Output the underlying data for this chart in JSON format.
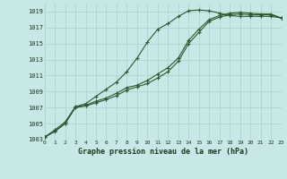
{
  "title": "Graphe pression niveau de la mer (hPa)",
  "bg_color": "#c8e8e8",
  "grid_color": "#b0d8d0",
  "line_color": "#2d5a2d",
  "xlim": [
    0,
    23
  ],
  "ylim": [
    1003,
    1020
  ],
  "yticks": [
    1003,
    1005,
    1007,
    1009,
    1011,
    1013,
    1015,
    1017,
    1019
  ],
  "xticks": [
    0,
    1,
    2,
    3,
    4,
    5,
    6,
    7,
    8,
    9,
    10,
    11,
    12,
    13,
    14,
    15,
    16,
    17,
    18,
    19,
    20,
    21,
    22,
    23
  ],
  "series": [
    [
      1003.3,
      1004.2,
      1005.2,
      1007.1,
      1007.5,
      1008.4,
      1009.3,
      1010.2,
      1011.5,
      1013.2,
      1015.2,
      1016.8,
      1017.5,
      1018.4,
      1019.1,
      1019.2,
      1019.1,
      1018.8,
      1018.5,
      1018.4,
      1018.4,
      1018.4,
      1018.4,
      1018.2
    ],
    [
      1003.3,
      1004.1,
      1005.0,
      1007.1,
      1007.3,
      1007.8,
      1008.2,
      1008.8,
      1009.5,
      1009.8,
      1010.4,
      1011.2,
      1012.0,
      1013.2,
      1015.4,
      1016.8,
      1018.0,
      1018.5,
      1018.8,
      1018.9,
      1018.8,
      1018.7,
      1018.7,
      1018.2
    ],
    [
      1003.3,
      1004.0,
      1005.0,
      1007.0,
      1007.2,
      1007.6,
      1008.0,
      1008.5,
      1009.2,
      1009.6,
      1010.0,
      1010.7,
      1011.5,
      1012.8,
      1015.0,
      1016.4,
      1017.8,
      1018.3,
      1018.6,
      1018.7,
      1018.6,
      1018.6,
      1018.6,
      1018.2
    ]
  ]
}
